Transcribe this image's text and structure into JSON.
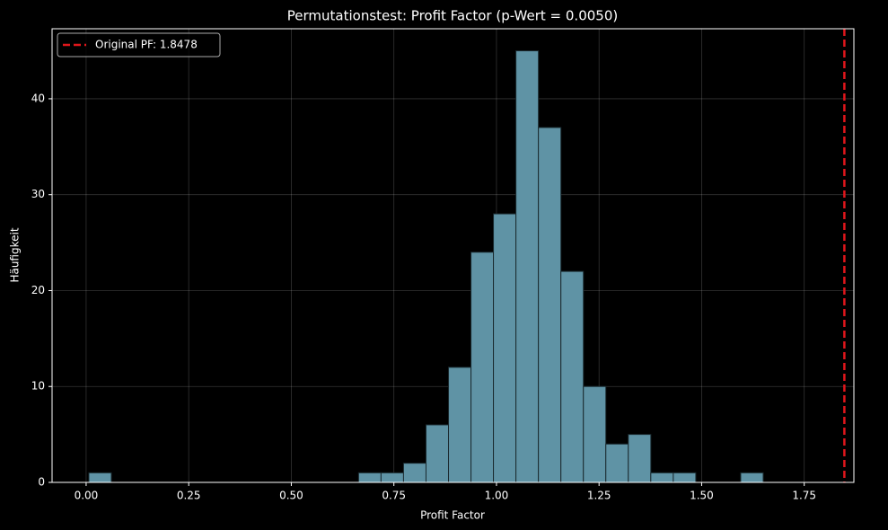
{
  "chart_data": {
    "type": "histogram",
    "title": "Permutationstest: Profit Factor (p-Wert = 0.0050)",
    "x_label": "Profit Factor",
    "y_label": "Häufigkeit",
    "bins": [
      0.0066,
      0.0614,
      0.1162,
      0.1709,
      0.2257,
      0.2805,
      0.3353,
      0.3901,
      0.4448,
      0.4996,
      0.5544,
      0.6092,
      0.664,
      0.7187,
      0.7735,
      0.8283,
      0.8831,
      0.9379,
      0.9926,
      1.0474,
      1.1022,
      1.157,
      1.2118,
      1.2665,
      1.3213,
      1.3761,
      1.4309,
      1.4857,
      1.5404,
      1.5952,
      1.65
    ],
    "values": [
      1,
      0,
      0,
      0,
      0,
      0,
      0,
      0,
      0,
      0,
      0,
      0,
      1,
      1,
      2,
      6,
      12,
      24,
      28,
      45,
      37,
      22,
      10,
      4,
      5,
      1,
      1,
      0,
      0,
      1
    ],
    "color": "#5f93a5",
    "vline": {
      "value": 1.8478,
      "label": "Original PF: 1.8478",
      "color": "#e0161b"
    },
    "xlim": [
      -0.083,
      1.871
    ],
    "ylim": [
      0,
      47.3
    ],
    "xticks": [
      {
        "value": 0,
        "label": "0.00"
      },
      {
        "value": 0.25,
        "label": "0.25"
      },
      {
        "value": 0.5,
        "label": "0.50"
      },
      {
        "value": 0.75,
        "label": "0.75"
      },
      {
        "value": 1,
        "label": "1.00"
      },
      {
        "value": 1.25,
        "label": "1.25"
      },
      {
        "value": 1.5,
        "label": "1.50"
      },
      {
        "value": 1.75,
        "label": "1.75"
      }
    ],
    "yticks": [
      0,
      10,
      20,
      30,
      40
    ],
    "grid": true,
    "legend": "upper-left"
  }
}
